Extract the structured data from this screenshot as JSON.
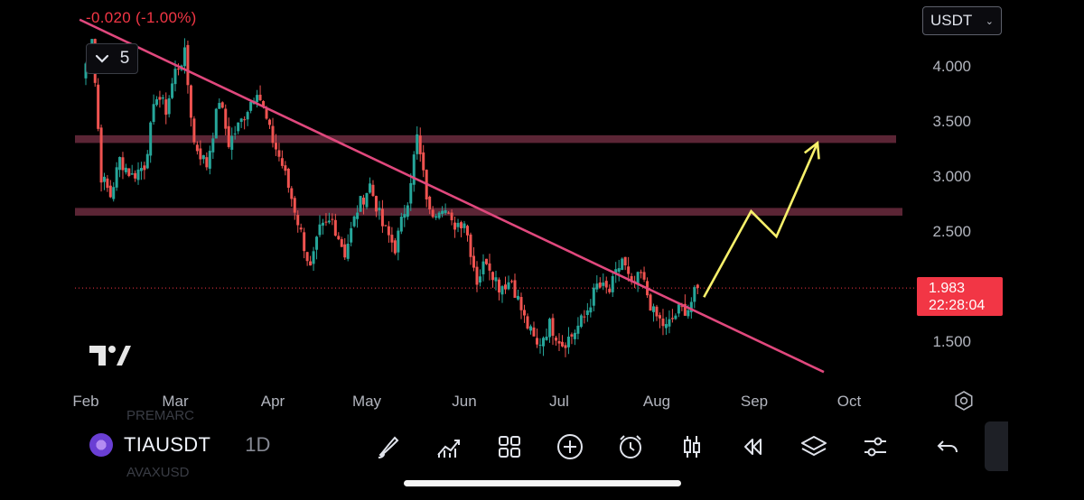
{
  "header": {
    "change_text": "-0.020 (-1.00%)",
    "interval_value": "5",
    "currency": "USDT"
  },
  "price_axis": {
    "ticks": [
      "4.000",
      "3.500",
      "3.000",
      "2.500",
      "1.500"
    ],
    "current_price": "1.983",
    "countdown": "22:28:04"
  },
  "time_axis": {
    "months": [
      "Feb",
      "Mar",
      "Apr",
      "May",
      "Jun",
      "Jul",
      "Aug",
      "Sep",
      "Oct"
    ]
  },
  "toolbar": {
    "symbol": "TIAUSDT",
    "interval": "1D",
    "icons": [
      "brush-icon",
      "indicators-icon",
      "layouts-icon",
      "add-icon",
      "alert-clock-icon",
      "candles-icon",
      "replay-icon",
      "layers-icon",
      "settings-sliders-icon",
      "undo-icon"
    ]
  },
  "colors": {
    "up": "#26a69a",
    "down": "#ef5350",
    "trendline": "#e0487d",
    "zone": "#6b2c3e",
    "projection": "#f7f06a",
    "price_tag": "#f23645"
  },
  "chart_data": {
    "type": "candlestick",
    "symbol": "TIAUSDT",
    "timeframe": "1D",
    "ylim": [
      1.3,
      4.3
    ],
    "current_price": 1.983,
    "resistance_zones": [
      [
        3.3,
        3.37
      ],
      [
        2.64,
        2.71
      ]
    ],
    "trendline": [
      [
        "Jan 30",
        4.42
      ],
      [
        "Sep 23",
        1.22
      ]
    ],
    "projection_path": [
      [
        "Aug 16",
        1.9
      ],
      [
        "Aug 31",
        2.68
      ],
      [
        "Sep 8",
        2.45
      ],
      [
        "Sep 21",
        3.3
      ]
    ],
    "close_path": [
      [
        "Jan 31",
        3.88
      ],
      [
        "Feb 3",
        4.28
      ],
      [
        "Feb 6",
        3.0
      ],
      [
        "Feb 9",
        2.82
      ],
      [
        "Feb 12",
        3.15
      ],
      [
        "Feb 16",
        3.0
      ],
      [
        "Feb 20",
        3.1
      ],
      [
        "Feb 24",
        3.75
      ],
      [
        "Feb 27",
        3.6
      ],
      [
        "Mar 1",
        3.95
      ],
      [
        "Mar 4",
        4.1
      ],
      [
        "Mar 7",
        3.3
      ],
      [
        "Mar 11",
        3.1
      ],
      [
        "Mar 15",
        3.7
      ],
      [
        "Mar 18",
        3.3
      ],
      [
        "Mar 22",
        3.5
      ],
      [
        "Mar 27",
        3.8
      ],
      [
        "Mar 31",
        3.4
      ],
      [
        "Apr 4",
        3.1
      ],
      [
        "Apr 8",
        2.7
      ],
      [
        "Apr 13",
        2.15
      ],
      [
        "Apr 16",
        2.5
      ],
      [
        "Apr 20",
        2.6
      ],
      [
        "Apr 24",
        2.3
      ],
      [
        "Apr 28",
        2.7
      ],
      [
        "May 2",
        2.92
      ],
      [
        "May 6",
        2.55
      ],
      [
        "May 10",
        2.35
      ],
      [
        "May 14",
        2.8
      ],
      [
        "May 17",
        3.35
      ],
      [
        "May 21",
        2.65
      ],
      [
        "May 25",
        2.75
      ],
      [
        "May 28",
        2.55
      ],
      [
        "Jun 1",
        2.6
      ],
      [
        "Jun 5",
        2.05
      ],
      [
        "Jun 8",
        2.25
      ],
      [
        "Jun 12",
        2.0
      ],
      [
        "Jun 16",
        2.05
      ],
      [
        "Jun 20",
        1.7
      ],
      [
        "Jun 24",
        1.45
      ],
      [
        "Jun 28",
        1.65
      ],
      [
        "Jul 2",
        1.48
      ],
      [
        "Jul 5",
        1.55
      ],
      [
        "Jul 9",
        1.72
      ],
      [
        "Jul 13",
        2.0
      ],
      [
        "Jul 17",
        1.95
      ],
      [
        "Jul 21",
        2.25
      ],
      [
        "Jul 24",
        1.98
      ],
      [
        "Jul 27",
        2.1
      ],
      [
        "Jul 31",
        1.75
      ],
      [
        "Aug 4",
        1.62
      ],
      [
        "Aug 8",
        1.78
      ],
      [
        "Aug 11",
        1.8
      ],
      [
        "Aug 14",
        1.983
      ]
    ]
  }
}
